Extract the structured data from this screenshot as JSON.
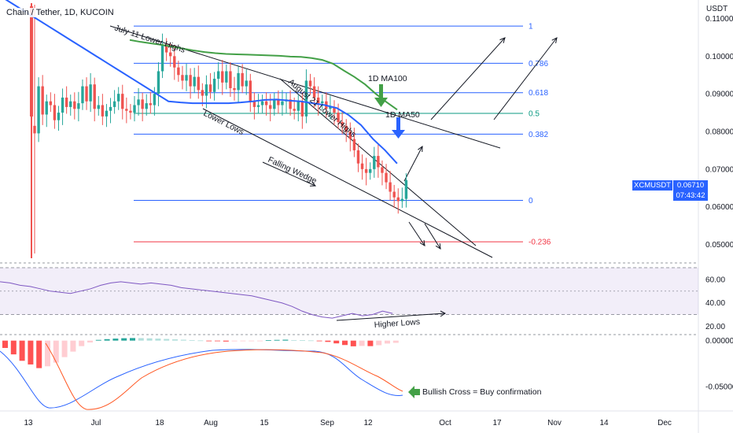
{
  "title": "Chain / Tether, 1D, KUCOIN",
  "currency": "USDT",
  "symbol": "XCMUSDT",
  "last_price": "0.06710",
  "countdown": "07:43:42",
  "colors": {
    "up": "#26a69a",
    "down": "#ef5350",
    "ma50": "#2962ff",
    "ma100": "#43a047",
    "fib_blue": "#2962ff",
    "fib_red": "#f23645",
    "rsi_line": "#7e57c2",
    "macd_line": "#2962ff",
    "signal_line": "#ff5722"
  },
  "chart_data": {
    "type": "candlestick",
    "pair": "Chain / Tether",
    "timeframe": "1D",
    "exchange": "KUCOIN",
    "price_axis": {
      "ylim": [
        0.0455,
        0.1145
      ],
      "ticks": [
        "0.11000",
        "0.10000",
        "0.09000",
        "0.08000",
        "0.07000",
        "0.06000",
        "0.05000"
      ]
    },
    "date_axis": {
      "labels": [
        "13",
        "Jul",
        "18",
        "Aug",
        "15",
        "Sep",
        "12",
        "Oct",
        "17",
        "Nov",
        "14",
        "Dec"
      ]
    },
    "close": [
      0.0795,
      0.092,
      0.0845,
      0.088,
      0.087,
      0.083,
      0.085,
      0.089,
      0.0865,
      0.088,
      0.086,
      0.0875,
      0.092,
      0.088,
      0.0925,
      0.086,
      0.087,
      0.084,
      0.0855,
      0.0865,
      0.088,
      0.09,
      0.086,
      0.0855,
      0.085,
      0.087,
      0.0885,
      0.086,
      0.0875,
      0.087,
      0.09,
      0.096,
      0.103,
      0.101,
      0.1,
      0.097,
      0.095,
      0.0935,
      0.095,
      0.092,
      0.0945,
      0.091,
      0.0895,
      0.0925,
      0.0905,
      0.094,
      0.096,
      0.093,
      0.096,
      0.0915,
      0.091,
      0.0955,
      0.092,
      0.0935,
      0.088,
      0.0865,
      0.087,
      0.088,
      0.087,
      0.086,
      0.0885,
      0.087,
      0.088,
      0.0885,
      0.086,
      0.0855,
      0.088,
      0.084,
      0.0935,
      0.092,
      0.089,
      0.0875,
      0.088,
      0.086,
      0.0865,
      0.085,
      0.0825,
      0.0815,
      0.08,
      0.078,
      0.075,
      0.0715,
      0.07,
      0.069,
      0.07,
      0.0735,
      0.0705,
      0.069,
      0.0665,
      0.064,
      0.0625,
      0.0615,
      0.0621,
      0.0671
    ],
    "ma50": [
      0.116,
      0.114,
      0.112,
      0.11,
      0.108,
      0.106,
      0.104,
      0.102,
      0.1,
      0.098,
      0.096,
      0.094,
      0.092,
      0.09,
      0.088,
      0.0877,
      0.0875,
      0.0875,
      0.0875,
      0.0875,
      0.0877,
      0.088,
      0.0884,
      0.0885,
      0.0882,
      0.088,
      0.0875,
      0.087,
      0.0862,
      0.0843,
      0.0817,
      0.078,
      0.075,
      0.0715
    ],
    "ma100": [
      0.1043,
      0.1038,
      0.1034,
      0.103,
      0.1025,
      0.102,
      0.1015,
      0.1011,
      0.1008,
      0.1006,
      0.1005,
      0.1004,
      0.1003,
      0.1002,
      0.1001,
      0.0999,
      0.0998,
      0.0995,
      0.099,
      0.098,
      0.0962,
      0.0945,
      0.0925,
      0.09,
      0.0878,
      0.0858
    ],
    "fib_levels": [
      {
        "label": "1",
        "price": 0.108
      },
      {
        "label": "0.786",
        "price": 0.0981
      },
      {
        "label": "0.618",
        "price": 0.0903
      },
      {
        "label": "0.5",
        "price": 0.0848
      },
      {
        "label": "0.382",
        "price": 0.0793
      },
      {
        "label": "0",
        "price": 0.0617
      },
      {
        "label": "-0.236",
        "price": 0.0507
      }
    ],
    "rsi": {
      "ticks": [
        "60.00",
        "40.00",
        "20.00"
      ],
      "ylim": [
        15,
        72
      ],
      "values": [
        58,
        57,
        55,
        54,
        52,
        50,
        49,
        48,
        50,
        52,
        55,
        57,
        58,
        57,
        56,
        57,
        56,
        55,
        53,
        52,
        51,
        50,
        49,
        48,
        47,
        46,
        44,
        42,
        40,
        37,
        33,
        30,
        28,
        27,
        29,
        31,
        29,
        30,
        33,
        31
      ]
    },
    "macd": {
      "ticks": [
        "0.00000",
        "-0.05000"
      ],
      "histogram": [
        -0.008,
        -0.015,
        -0.022,
        -0.026,
        -0.03,
        -0.028,
        -0.024,
        -0.018,
        -0.012,
        -0.006,
        -0.002,
        0.0008,
        0.0016,
        0.0022,
        0.0026,
        0.0028,
        0.0027,
        0.0025,
        0.0022,
        0.0018,
        0.0014,
        0.001,
        0.0006,
        0.0002,
        -0.0003,
        -0.0006,
        -0.001,
        -0.0008,
        -0.0006,
        -0.0004,
        -0.0002,
        0.0004,
        0.0008,
        0.001,
        0.0006,
        0.0004,
        0.0002,
        -0.0004,
        -0.0014,
        -0.003,
        -0.0048,
        -0.0062,
        -0.0058,
        -0.006,
        -0.005,
        -0.0032,
        -0.0024
      ]
    },
    "annotations": [
      "July 11 Lower Highs",
      "August 21 Lower Highs",
      "Lower Lows",
      "Falling Wedge",
      "1D MA100",
      "1D MA50",
      "Higher Lows",
      "Bullish Cross = Buy confirmation"
    ]
  }
}
